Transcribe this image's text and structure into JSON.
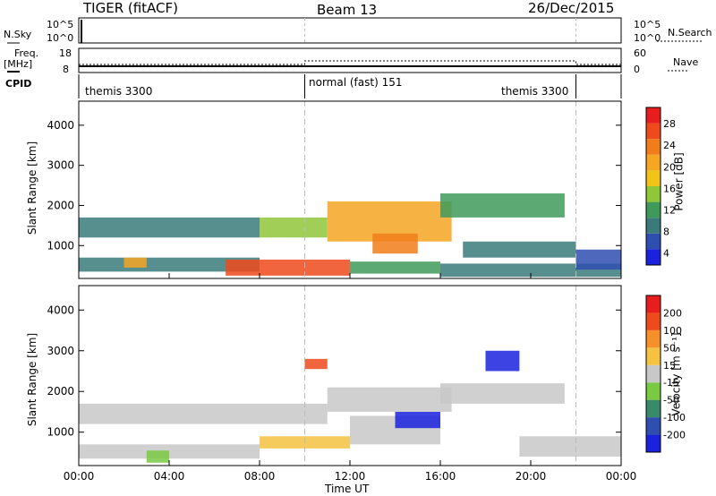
{
  "header": {
    "station": "TIGER (fitACF)",
    "beam": "Beam 13",
    "date": "26/Dec/2015"
  },
  "top_panels": {
    "nsky_label": "N.Sky",
    "nsky_ticks": [
      "10^5",
      "10^0"
    ],
    "nsearch_label": "N.Search",
    "nsearch_ticks": [
      "10^5",
      "10^0"
    ],
    "freq_label": "Freq.",
    "freq_unit": "[MHz]",
    "freq_ticks": [
      "18",
      "8"
    ],
    "nave_label": "Nave",
    "nave_ticks": [
      "60",
      "0"
    ],
    "cpid_label": "CPID",
    "cpid_segments": [
      {
        "label": "themis 3300",
        "start": 0,
        "end": 10
      },
      {
        "label": "normal (fast) 151",
        "start": 10,
        "end": 22
      },
      {
        "label": "themis 3300",
        "start": 22,
        "end": 24
      }
    ]
  },
  "power_colorbar": {
    "label": "Power [dB]",
    "ticks": [
      "28",
      "24",
      "20",
      "16",
      "12",
      "8",
      "4"
    ],
    "colors": [
      "#1a22dd",
      "#2f4fb0",
      "#3a7a7a",
      "#3f9a5a",
      "#8fc63a",
      "#f0c419",
      "#f5a623",
      "#f07d1a",
      "#ee4a1c",
      "#e81d1d"
    ]
  },
  "velocity_colorbar": {
    "label": "Velocity [m s⁻¹]",
    "ticks": [
      "200",
      "100",
      "50",
      "15",
      "-15",
      "-50",
      "-100",
      "-200"
    ],
    "colors": [
      "#1a22dd",
      "#2f4fb0",
      "#3a8a6a",
      "#7ac943",
      "#c8c8c8",
      "#f5c242",
      "#f5902a",
      "#ee4a1c",
      "#e81d1d"
    ]
  },
  "axes": {
    "ylabel": "Slant Range [km]",
    "xlabel": "Time UT"
  },
  "chart_data": [
    {
      "type": "heatmap",
      "title": "Power",
      "xlabel": "Time UT",
      "ylabel": "Slant Range [km]",
      "xlim": [
        0,
        24
      ],
      "ylim": [
        180,
        4600
      ],
      "xticks": [
        "00:00",
        "04:00",
        "08:00",
        "12:00",
        "16:00",
        "20:00",
        "00:00"
      ],
      "yticks": [
        1000,
        2000,
        3000,
        4000
      ],
      "mode_change_times": [
        10,
        22
      ],
      "colorbar": {
        "label": "Power [dB]",
        "range": [
          0,
          30
        ]
      },
      "bands": [
        {
          "t0": 0.0,
          "t1": 8.0,
          "r_lo": 350,
          "r_hi": 700,
          "value": 8
        },
        {
          "t0": 2.0,
          "t1": 3.0,
          "r_lo": 450,
          "r_hi": 700,
          "value": 20
        },
        {
          "t0": 6.5,
          "t1": 12.0,
          "r_lo": 250,
          "r_hi": 650,
          "value": 24
        },
        {
          "t0": 12.0,
          "t1": 16.0,
          "r_lo": 300,
          "r_hi": 600,
          "value": 10
        },
        {
          "t0": 16.0,
          "t1": 24.0,
          "r_lo": 220,
          "r_hi": 550,
          "value": 6
        },
        {
          "t0": 0.0,
          "t1": 8.0,
          "r_lo": 1200,
          "r_hi": 1700,
          "value": 7
        },
        {
          "t0": 8.0,
          "t1": 11.0,
          "r_lo": 1200,
          "r_hi": 1700,
          "value": 14
        },
        {
          "t0": 11.0,
          "t1": 16.5,
          "r_lo": 1100,
          "r_hi": 2100,
          "value": 18
        },
        {
          "t0": 13.0,
          "t1": 15.0,
          "r_lo": 800,
          "r_hi": 1300,
          "value": 22
        },
        {
          "t0": 16.0,
          "t1": 21.5,
          "r_lo": 1700,
          "r_hi": 2300,
          "value": 9
        },
        {
          "t0": 17.0,
          "t1": 22.0,
          "r_lo": 700,
          "r_hi": 1100,
          "value": 6
        },
        {
          "t0": 22.0,
          "t1": 24.0,
          "r_lo": 400,
          "r_hi": 900,
          "value": 5
        }
      ]
    },
    {
      "type": "heatmap",
      "title": "Velocity",
      "xlabel": "Time UT",
      "ylabel": "Slant Range [km]",
      "xlim": [
        0,
        24
      ],
      "ylim": [
        180,
        4600
      ],
      "xticks": [
        "00:00",
        "04:00",
        "08:00",
        "12:00",
        "16:00",
        "20:00",
        "00:00"
      ],
      "yticks": [
        1000,
        2000,
        3000,
        4000
      ],
      "mode_change_times": [
        10,
        22
      ],
      "colorbar": {
        "label": "Velocity [m s⁻¹]",
        "range": [
          -250,
          250
        ]
      },
      "bands": [
        {
          "t0": 0.0,
          "t1": 8.0,
          "r_lo": 350,
          "r_hi": 700,
          "value": 0
        },
        {
          "t0": 3.0,
          "t1": 4.0,
          "r_lo": 250,
          "r_hi": 550,
          "value": -80
        },
        {
          "t0": 8.0,
          "t1": 12.0,
          "r_lo": 600,
          "r_hi": 900,
          "value": 30
        },
        {
          "t0": 12.0,
          "t1": 16.0,
          "r_lo": 700,
          "r_hi": 1400,
          "value": 25
        },
        {
          "t0": 14.0,
          "t1": 16.0,
          "r_lo": 1100,
          "r_hi": 1500,
          "value": -220
        },
        {
          "t0": 0.0,
          "t1": 11.0,
          "r_lo": 1200,
          "r_hi": 1700,
          "value": 0
        },
        {
          "t0": 11.0,
          "t1": 16.5,
          "r_lo": 1500,
          "r_hi": 2100,
          "value": 0
        },
        {
          "t0": 16.0,
          "t1": 21.5,
          "r_lo": 1700,
          "r_hi": 2200,
          "value": 5
        },
        {
          "t0": 18.0,
          "t1": 19.5,
          "r_lo": 2500,
          "r_hi": 3000,
          "value": -200
        },
        {
          "t0": 19.5,
          "t1": 24.0,
          "r_lo": 400,
          "r_hi": 900,
          "value": 0
        },
        {
          "t0": 10.0,
          "t1": 11.0,
          "r_lo": 2550,
          "r_hi": 2800,
          "value": 150
        }
      ]
    }
  ]
}
